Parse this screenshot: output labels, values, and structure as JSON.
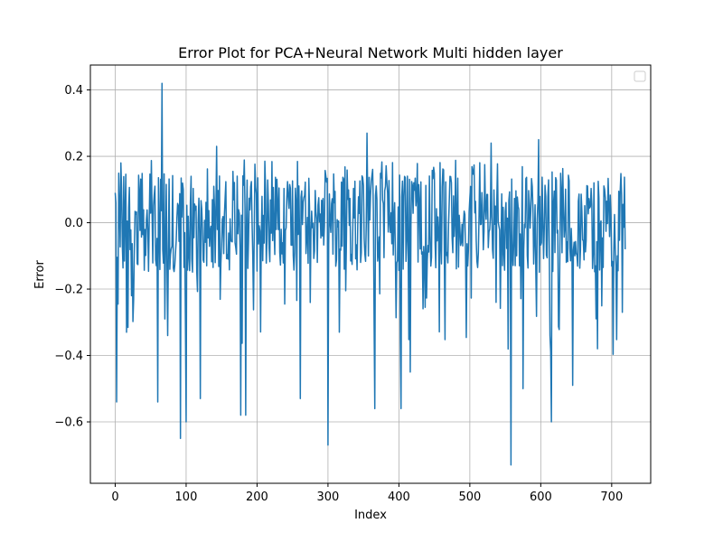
{
  "chart_data": {
    "type": "line",
    "title": "Error Plot for PCA+Neural Network Multi hidden layer",
    "xlabel": "Index",
    "ylabel": "Error",
    "xlim": [
      -35,
      755
    ],
    "ylim": [
      -0.785,
      0.475
    ],
    "xticks": [
      0,
      100,
      200,
      300,
      400,
      500,
      600,
      700
    ],
    "yticks": [
      -0.6,
      -0.4,
      -0.2,
      0.0,
      0.2,
      0.4
    ],
    "ytick_labels": [
      "−0.6",
      "−0.4",
      "−0.2",
      "0.0",
      "0.2",
      "0.4"
    ],
    "grid": true,
    "legend": {
      "placement": "top-right",
      "entries": []
    },
    "series": [
      {
        "color": "#1f77b4",
        "sample_count": 720,
        "baseline_mean": 0.0,
        "range": [
          -0.73,
          0.42
        ],
        "notable_points": [
          {
            "x": 0,
            "y": 0.09
          },
          {
            "x": 2,
            "y": -0.54
          },
          {
            "x": 8,
            "y": 0.18
          },
          {
            "x": 16,
            "y": -0.33
          },
          {
            "x": 23,
            "y": -0.22
          },
          {
            "x": 60,
            "y": -0.54
          },
          {
            "x": 66,
            "y": 0.42
          },
          {
            "x": 70,
            "y": -0.29
          },
          {
            "x": 74,
            "y": -0.34
          },
          {
            "x": 92,
            "y": -0.65
          },
          {
            "x": 100,
            "y": -0.6
          },
          {
            "x": 120,
            "y": -0.53
          },
          {
            "x": 143,
            "y": 0.23
          },
          {
            "x": 177,
            "y": -0.58
          },
          {
            "x": 184,
            "y": -0.58
          },
          {
            "x": 261,
            "y": -0.53
          },
          {
            "x": 300,
            "y": -0.67
          },
          {
            "x": 355,
            "y": 0.27
          },
          {
            "x": 366,
            "y": -0.56
          },
          {
            "x": 403,
            "y": -0.56
          },
          {
            "x": 416,
            "y": -0.45
          },
          {
            "x": 530,
            "y": 0.24
          },
          {
            "x": 558,
            "y": -0.73
          },
          {
            "x": 575,
            "y": -0.5
          },
          {
            "x": 597,
            "y": 0.25
          },
          {
            "x": 615,
            "y": -0.6
          },
          {
            "x": 645,
            "y": -0.49
          },
          {
            "x": 680,
            "y": -0.38
          },
          {
            "x": 715,
            "y": -0.27
          },
          {
            "x": 719,
            "y": -0.08
          }
        ]
      }
    ]
  }
}
